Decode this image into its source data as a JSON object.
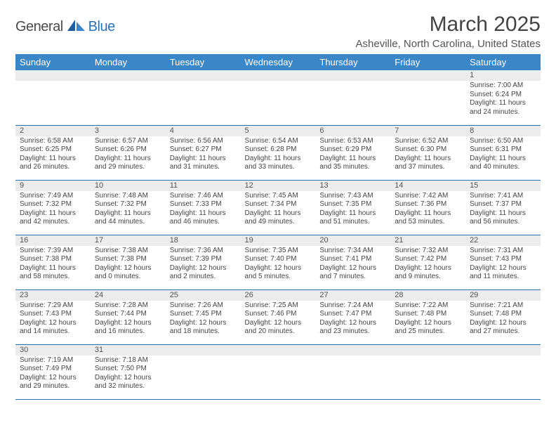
{
  "logo": {
    "general": "General",
    "blue": "Blue"
  },
  "title": "March 2025",
  "subtitle": "Asheville, North Carolina, United States",
  "colors": {
    "header_bg": "#3b86c6",
    "header_text": "#ffffff",
    "grid_line": "#2a72b5",
    "num_bg": "#ececec",
    "text": "#444444",
    "logo_blue": "#2a72b5",
    "logo_gray": "#4a4a4a"
  },
  "weekdays": [
    "Sunday",
    "Monday",
    "Tuesday",
    "Wednesday",
    "Thursday",
    "Friday",
    "Saturday"
  ],
  "weeks": [
    [
      null,
      null,
      null,
      null,
      null,
      null,
      {
        "n": "1",
        "sr": "7:00 AM",
        "ss": "6:24 PM",
        "dl": "11 hours and 24 minutes."
      }
    ],
    [
      {
        "n": "2",
        "sr": "6:58 AM",
        "ss": "6:25 PM",
        "dl": "11 hours and 26 minutes."
      },
      {
        "n": "3",
        "sr": "6:57 AM",
        "ss": "6:26 PM",
        "dl": "11 hours and 29 minutes."
      },
      {
        "n": "4",
        "sr": "6:56 AM",
        "ss": "6:27 PM",
        "dl": "11 hours and 31 minutes."
      },
      {
        "n": "5",
        "sr": "6:54 AM",
        "ss": "6:28 PM",
        "dl": "11 hours and 33 minutes."
      },
      {
        "n": "6",
        "sr": "6:53 AM",
        "ss": "6:29 PM",
        "dl": "11 hours and 35 minutes."
      },
      {
        "n": "7",
        "sr": "6:52 AM",
        "ss": "6:30 PM",
        "dl": "11 hours and 37 minutes."
      },
      {
        "n": "8",
        "sr": "6:50 AM",
        "ss": "6:31 PM",
        "dl": "11 hours and 40 minutes."
      }
    ],
    [
      {
        "n": "9",
        "sr": "7:49 AM",
        "ss": "7:32 PM",
        "dl": "11 hours and 42 minutes."
      },
      {
        "n": "10",
        "sr": "7:48 AM",
        "ss": "7:32 PM",
        "dl": "11 hours and 44 minutes."
      },
      {
        "n": "11",
        "sr": "7:46 AM",
        "ss": "7:33 PM",
        "dl": "11 hours and 46 minutes."
      },
      {
        "n": "12",
        "sr": "7:45 AM",
        "ss": "7:34 PM",
        "dl": "11 hours and 49 minutes."
      },
      {
        "n": "13",
        "sr": "7:43 AM",
        "ss": "7:35 PM",
        "dl": "11 hours and 51 minutes."
      },
      {
        "n": "14",
        "sr": "7:42 AM",
        "ss": "7:36 PM",
        "dl": "11 hours and 53 minutes."
      },
      {
        "n": "15",
        "sr": "7:41 AM",
        "ss": "7:37 PM",
        "dl": "11 hours and 56 minutes."
      }
    ],
    [
      {
        "n": "16",
        "sr": "7:39 AM",
        "ss": "7:38 PM",
        "dl": "11 hours and 58 minutes."
      },
      {
        "n": "17",
        "sr": "7:38 AM",
        "ss": "7:38 PM",
        "dl": "12 hours and 0 minutes."
      },
      {
        "n": "18",
        "sr": "7:36 AM",
        "ss": "7:39 PM",
        "dl": "12 hours and 2 minutes."
      },
      {
        "n": "19",
        "sr": "7:35 AM",
        "ss": "7:40 PM",
        "dl": "12 hours and 5 minutes."
      },
      {
        "n": "20",
        "sr": "7:34 AM",
        "ss": "7:41 PM",
        "dl": "12 hours and 7 minutes."
      },
      {
        "n": "21",
        "sr": "7:32 AM",
        "ss": "7:42 PM",
        "dl": "12 hours and 9 minutes."
      },
      {
        "n": "22",
        "sr": "7:31 AM",
        "ss": "7:43 PM",
        "dl": "12 hours and 11 minutes."
      }
    ],
    [
      {
        "n": "23",
        "sr": "7:29 AM",
        "ss": "7:43 PM",
        "dl": "12 hours and 14 minutes."
      },
      {
        "n": "24",
        "sr": "7:28 AM",
        "ss": "7:44 PM",
        "dl": "12 hours and 16 minutes."
      },
      {
        "n": "25",
        "sr": "7:26 AM",
        "ss": "7:45 PM",
        "dl": "12 hours and 18 minutes."
      },
      {
        "n": "26",
        "sr": "7:25 AM",
        "ss": "7:46 PM",
        "dl": "12 hours and 20 minutes."
      },
      {
        "n": "27",
        "sr": "7:24 AM",
        "ss": "7:47 PM",
        "dl": "12 hours and 23 minutes."
      },
      {
        "n": "28",
        "sr": "7:22 AM",
        "ss": "7:48 PM",
        "dl": "12 hours and 25 minutes."
      },
      {
        "n": "29",
        "sr": "7:21 AM",
        "ss": "7:48 PM",
        "dl": "12 hours and 27 minutes."
      }
    ],
    [
      {
        "n": "30",
        "sr": "7:19 AM",
        "ss": "7:49 PM",
        "dl": "12 hours and 29 minutes."
      },
      {
        "n": "31",
        "sr": "7:18 AM",
        "ss": "7:50 PM",
        "dl": "12 hours and 32 minutes."
      },
      null,
      null,
      null,
      null,
      null
    ]
  ],
  "labels": {
    "sunrise": "Sunrise:",
    "sunset": "Sunset:",
    "daylight": "Daylight:"
  }
}
